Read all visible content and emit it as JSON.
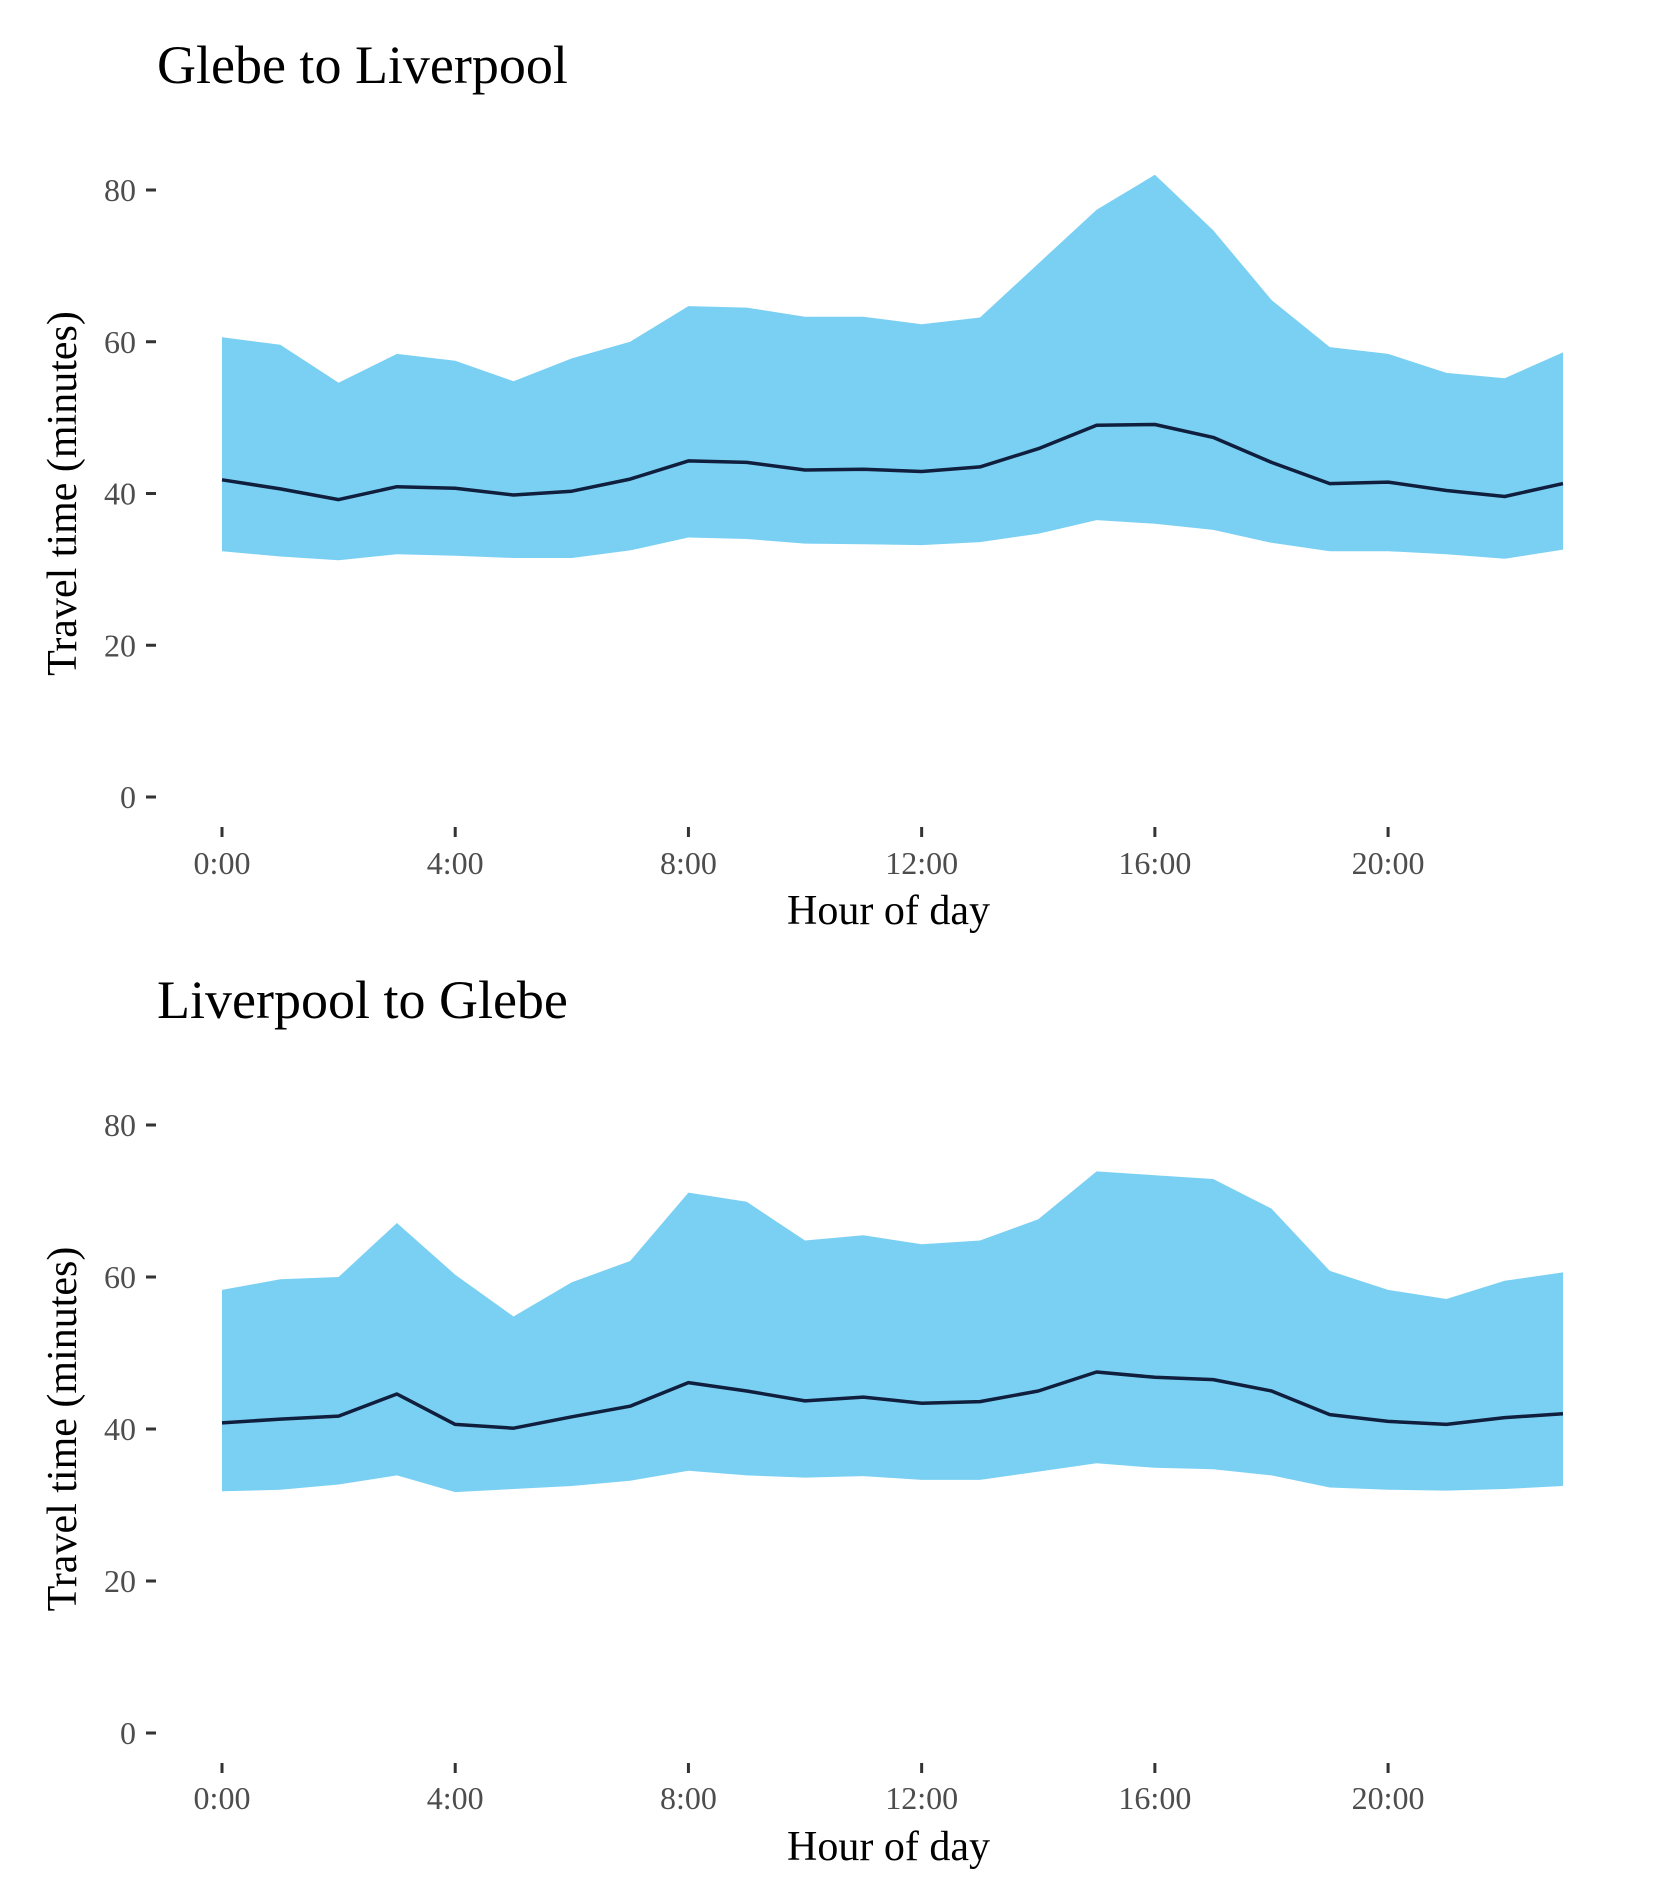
{
  "colors": {
    "band": "#7ad0f3",
    "line": "#0f1f3d"
  },
  "chart_data": [
    {
      "type": "area",
      "title": "Glebe to Liverpool",
      "xlabel": "Hour of day",
      "ylabel": "Travel time (minutes)",
      "xlim": [
        0,
        23
      ],
      "ylim": [
        0,
        80
      ],
      "x_ticks": [
        0,
        4,
        8,
        12,
        16,
        20
      ],
      "x_tick_labels": [
        "0:00",
        "4:00",
        "8:00",
        "12:00",
        "16:00",
        "20:00"
      ],
      "y_ticks": [
        0,
        20,
        40,
        60,
        80
      ],
      "y_tick_labels": [
        "0",
        "20",
        "40",
        "60",
        "80"
      ],
      "grid": false,
      "x": [
        0,
        1,
        2,
        3,
        4,
        5,
        6,
        7,
        8,
        9,
        10,
        11,
        12,
        13,
        14,
        15,
        16,
        17,
        18,
        19,
        20,
        21,
        22,
        23
      ],
      "series": [
        {
          "role": "upper",
          "values": [
            60.6,
            59.6,
            54.6,
            58.4,
            57.5,
            54.8,
            57.8,
            60.0,
            64.7,
            64.5,
            63.3,
            63.3,
            62.3,
            63.2,
            70.3,
            77.4,
            82.0,
            74.7,
            65.5,
            59.3,
            58.4,
            55.9,
            55.2,
            58.6
          ]
        },
        {
          "role": "mean",
          "values": [
            41.8,
            40.6,
            39.2,
            40.9,
            40.7,
            39.8,
            40.3,
            41.9,
            44.3,
            44.1,
            43.1,
            43.2,
            42.9,
            43.5,
            45.9,
            49.0,
            49.1,
            47.4,
            44.1,
            41.3,
            41.5,
            40.4,
            39.6,
            41.3
          ]
        },
        {
          "role": "lower",
          "values": [
            32.4,
            31.7,
            31.2,
            32.0,
            31.8,
            31.5,
            31.5,
            32.5,
            34.2,
            34.0,
            33.4,
            33.3,
            33.2,
            33.6,
            34.7,
            36.5,
            36.0,
            35.2,
            33.5,
            32.4,
            32.4,
            32.0,
            31.4,
            32.6
          ]
        }
      ]
    },
    {
      "type": "area",
      "title": "Liverpool to Glebe",
      "xlabel": "Hour of day",
      "ylabel": "Travel time (minutes)",
      "xlim": [
        0,
        23
      ],
      "ylim": [
        0,
        80
      ],
      "x_ticks": [
        0,
        4,
        8,
        12,
        16,
        20
      ],
      "x_tick_labels": [
        "0:00",
        "4:00",
        "8:00",
        "12:00",
        "16:00",
        "20:00"
      ],
      "y_ticks": [
        0,
        20,
        40,
        60,
        80
      ],
      "y_tick_labels": [
        "0",
        "20",
        "40",
        "60",
        "80"
      ],
      "grid": false,
      "x": [
        0,
        1,
        2,
        3,
        4,
        5,
        6,
        7,
        8,
        9,
        10,
        11,
        12,
        13,
        14,
        15,
        16,
        17,
        18,
        19,
        20,
        21,
        22,
        23
      ],
      "series": [
        {
          "role": "upper",
          "values": [
            58.3,
            59.7,
            60.0,
            67.1,
            60.3,
            54.8,
            59.3,
            62.1,
            71.1,
            69.9,
            64.8,
            65.5,
            64.3,
            64.8,
            67.6,
            73.9,
            73.4,
            72.9,
            69.0,
            60.8,
            58.3,
            57.1,
            59.5,
            60.6
          ]
        },
        {
          "role": "mean",
          "values": [
            40.8,
            41.3,
            41.7,
            44.6,
            40.6,
            40.1,
            41.6,
            43.0,
            46.1,
            45.0,
            43.7,
            44.2,
            43.4,
            43.6,
            45.0,
            47.5,
            46.8,
            46.5,
            45.0,
            41.9,
            41.0,
            40.6,
            41.5,
            42.0
          ]
        },
        {
          "role": "lower",
          "values": [
            31.8,
            32.0,
            32.7,
            33.9,
            31.7,
            32.1,
            32.5,
            33.2,
            34.5,
            33.9,
            33.6,
            33.8,
            33.3,
            33.3,
            34.4,
            35.5,
            34.9,
            34.7,
            33.9,
            32.3,
            32.0,
            31.9,
            32.1,
            32.5
          ]
        }
      ]
    }
  ]
}
